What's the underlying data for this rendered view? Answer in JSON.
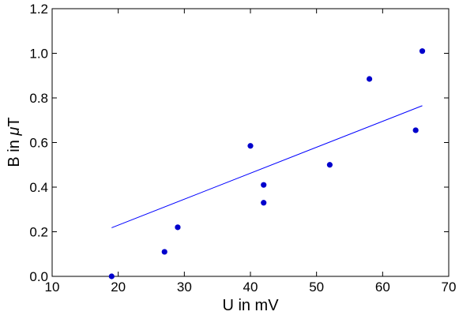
{
  "chart_data": {
    "type": "scatter",
    "xlabel": "U in mV",
    "ylabel_parts": [
      "B in ",
      "μ",
      "T"
    ],
    "xlim": [
      10,
      70
    ],
    "ylim": [
      0.0,
      1.2
    ],
    "x_ticks": [
      10,
      20,
      30,
      40,
      50,
      60,
      70
    ],
    "x_tick_labels": [
      "10",
      "20",
      "30",
      "40",
      "50",
      "60",
      "70"
    ],
    "y_ticks": [
      0.0,
      0.2,
      0.4,
      0.6,
      0.8,
      1.0,
      1.2
    ],
    "y_tick_labels": [
      "0.0",
      "0.2",
      "0.4",
      "0.6",
      "0.8",
      "1.0",
      "1.2"
    ],
    "grid": false,
    "series": [
      {
        "type": "scatter",
        "color": "#0000cc",
        "points": [
          {
            "x": 19,
            "y": 0.0
          },
          {
            "x": 27,
            "y": 0.11
          },
          {
            "x": 29,
            "y": 0.22
          },
          {
            "x": 40,
            "y": 0.585
          },
          {
            "x": 42,
            "y": 0.41
          },
          {
            "x": 42,
            "y": 0.33
          },
          {
            "x": 52,
            "y": 0.5
          },
          {
            "x": 58,
            "y": 0.885
          },
          {
            "x": 65,
            "y": 0.655
          },
          {
            "x": 66,
            "y": 1.01
          }
        ]
      },
      {
        "type": "line",
        "color": "#0000ff",
        "points": [
          {
            "x": 19,
            "y": 0.218
          },
          {
            "x": 66,
            "y": 0.765
          }
        ]
      }
    ]
  }
}
